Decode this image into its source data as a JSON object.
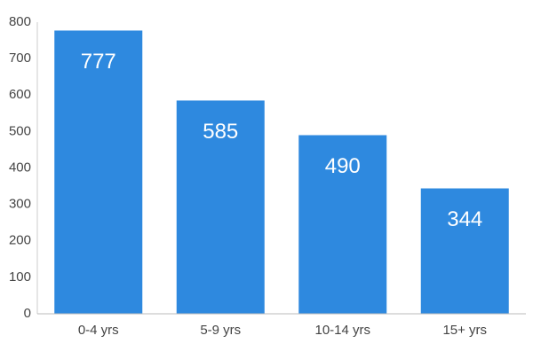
{
  "chart_data": {
    "type": "bar",
    "categories": [
      "0-4 yrs",
      "5-9 yrs",
      "10-14 yrs",
      "15+ yrs"
    ],
    "values": [
      777,
      585,
      490,
      344
    ],
    "color": "#2e89df",
    "ylim": [
      0,
      800
    ],
    "yticks": [
      0,
      100,
      200,
      300,
      400,
      500,
      600,
      700,
      800
    ],
    "grid": false
  }
}
